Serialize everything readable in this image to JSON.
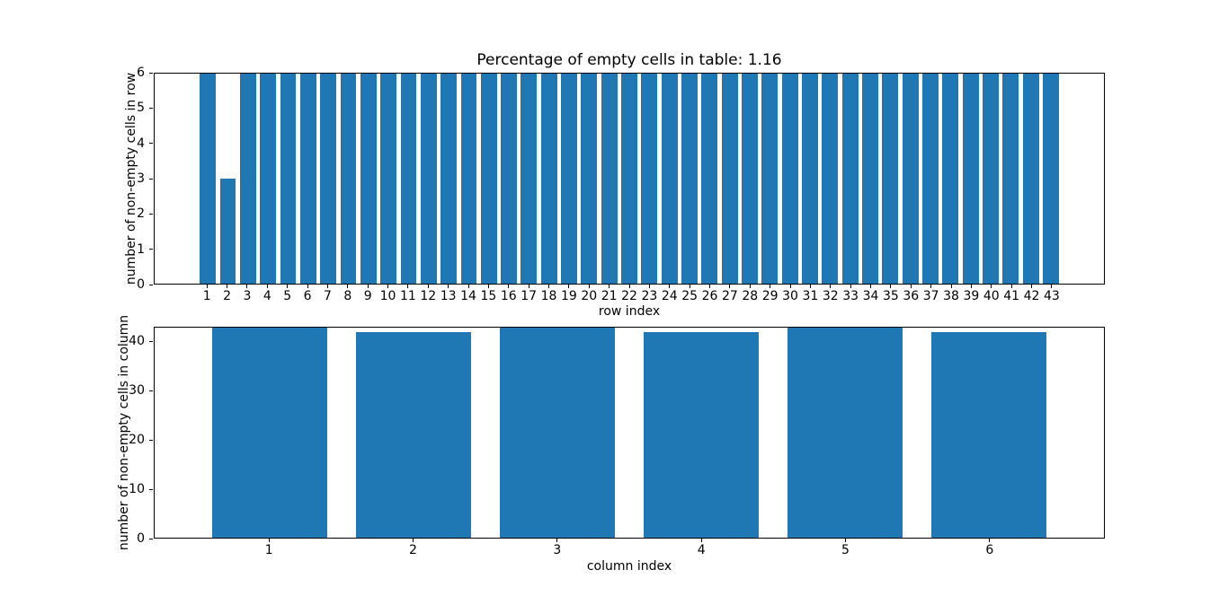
{
  "figure": {
    "background": "#ffffff",
    "bar_color": "#1f77b4",
    "axis_color": "#000000"
  },
  "chart_data": [
    {
      "type": "bar",
      "title": "Percentage of empty cells in table: 1.16",
      "xlabel": "row index",
      "ylabel": "number of non-empty cells in row",
      "categories": [
        "1",
        "2",
        "3",
        "4",
        "5",
        "6",
        "7",
        "8",
        "9",
        "10",
        "11",
        "12",
        "13",
        "14",
        "15",
        "16",
        "17",
        "18",
        "19",
        "20",
        "21",
        "22",
        "23",
        "24",
        "25",
        "26",
        "27",
        "28",
        "29",
        "30",
        "31",
        "32",
        "33",
        "34",
        "35",
        "36",
        "37",
        "38",
        "39",
        "40",
        "41",
        "42",
        "43"
      ],
      "values": [
        6,
        3,
        6,
        6,
        6,
        6,
        6,
        6,
        6,
        6,
        6,
        6,
        6,
        6,
        6,
        6,
        6,
        6,
        6,
        6,
        6,
        6,
        6,
        6,
        6,
        6,
        6,
        6,
        6,
        6,
        6,
        6,
        6,
        6,
        6,
        6,
        6,
        6,
        6,
        6,
        6,
        6,
        6
      ],
      "ylim": [
        0,
        6
      ],
      "yticks": [
        0,
        1,
        2,
        3,
        4,
        5,
        6
      ],
      "grid": false,
      "legend": null
    },
    {
      "type": "bar",
      "title": "",
      "xlabel": "column index",
      "ylabel": "number of non-empty cells in column",
      "categories": [
        "1",
        "2",
        "3",
        "4",
        "5",
        "6"
      ],
      "values": [
        43,
        42,
        43,
        42,
        43,
        42
      ],
      "ylim": [
        0,
        43
      ],
      "yticks": [
        0,
        10,
        20,
        30,
        40
      ],
      "grid": false,
      "legend": null
    }
  ]
}
